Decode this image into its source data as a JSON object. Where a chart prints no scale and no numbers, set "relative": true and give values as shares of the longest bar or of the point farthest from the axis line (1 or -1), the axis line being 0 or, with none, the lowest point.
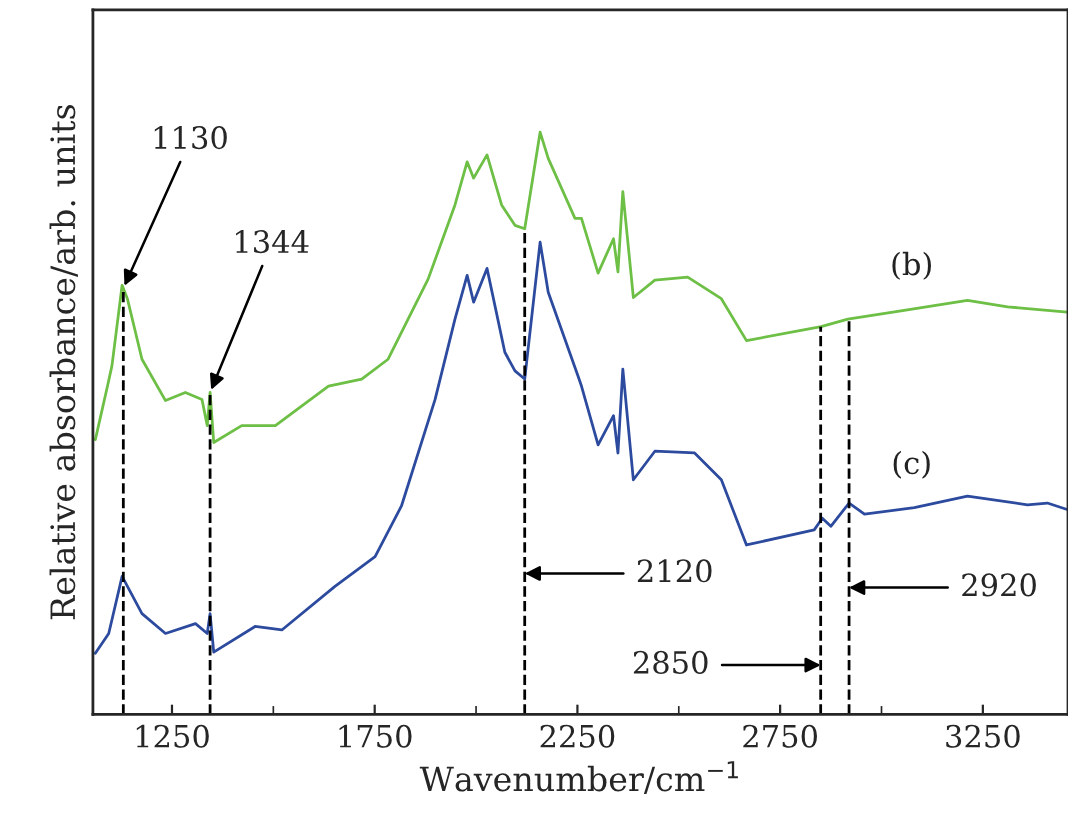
{
  "chart_data": {
    "type": "line",
    "relative": true,
    "xlabel": "Wavenumber/cm$^{−1}$",
    "ylabel": "Relative absorbance/arb. units",
    "xlim": [
      1055,
      3460
    ],
    "xticks": [
      1250,
      1750,
      2250,
      2750,
      3250
    ],
    "marker": "none",
    "line_style": "solid",
    "grid": false,
    "legend": false,
    "series": [
      {
        "name": "(b)",
        "color": "#6dbf45",
        "x": [
          1061,
          1091,
          1102,
          1127,
          1140,
          1176,
          1234,
          1283,
          1324,
          1337,
          1344,
          1353,
          1422,
          1505,
          1636,
          1718,
          1783,
          1882,
          1948,
          1978,
          1994,
          2027,
          2063,
          2096,
          2120,
          2158,
          2178,
          2244,
          2260,
          2301,
          2339,
          2350,
          2362,
          2388,
          2441,
          2522,
          2605,
          2667,
          2851,
          2917,
          3048,
          3212,
          3311,
          3458
        ],
        "values": [
          0.472,
          0.564,
          0.599,
          0.737,
          0.714,
          0.61,
          0.539,
          0.553,
          0.541,
          0.496,
          0.553,
          0.467,
          0.496,
          0.496,
          0.564,
          0.576,
          0.61,
          0.748,
          0.875,
          0.949,
          0.921,
          0.961,
          0.875,
          0.84,
          0.834,
          1,
          0.955,
          0.852,
          0.852,
          0.758,
          0.817,
          0.76,
          0.898,
          0.716,
          0.746,
          0.751,
          0.714,
          0.642,
          0.666,
          0.679,
          0.693,
          0.711,
          0.7,
          0.691
        ]
      },
      {
        "name": "(c)",
        "color": "#2d4b9e",
        "x": [
          1061,
          1094,
          1127,
          1176,
          1234,
          1308,
          1337,
          1344,
          1353,
          1455,
          1521,
          1652,
          1751,
          1816,
          1899,
          1948,
          1978,
          1994,
          2027,
          2071,
          2096,
          2120,
          2158,
          2178,
          2251,
          2260,
          2301,
          2339,
          2350,
          2362,
          2388,
          2441,
          2539,
          2605,
          2667,
          2834,
          2854,
          2875,
          2920,
          2958,
          3081,
          3212,
          3360,
          3409,
          3458
        ],
        "values": [
          0.105,
          0.139,
          0.237,
          0.173,
          0.139,
          0.156,
          0.139,
          0.173,
          0.107,
          0.151,
          0.145,
          0.22,
          0.271,
          0.358,
          0.541,
          0.679,
          0.754,
          0.708,
          0.766,
          0.622,
          0.59,
          0.576,
          0.811,
          0.725,
          0.582,
          0.564,
          0.463,
          0.513,
          0.449,
          0.593,
          0.403,
          0.452,
          0.449,
          0.403,
          0.291,
          0.317,
          0.337,
          0.323,
          0.363,
          0.344,
          0.355,
          0.375,
          0.36,
          0.363,
          0.352
        ]
      }
    ],
    "ref_lines": [
      {
        "axis": "x",
        "value": 1130,
        "label": "1130",
        "color": "#000000",
        "line_style": "dashed"
      },
      {
        "axis": "x",
        "value": 1344,
        "label": "1344",
        "color": "#000000",
        "line_style": "dashed"
      },
      {
        "axis": "x",
        "value": 2120,
        "label": "2120",
        "color": "#000000",
        "line_style": "dashed"
      },
      {
        "axis": "x",
        "value": 2850,
        "label": "2850",
        "color": "#000000",
        "line_style": "dashed"
      },
      {
        "axis": "x",
        "value": 2920,
        "label": "2920",
        "color": "#000000",
        "line_style": "dashed"
      }
    ]
  }
}
